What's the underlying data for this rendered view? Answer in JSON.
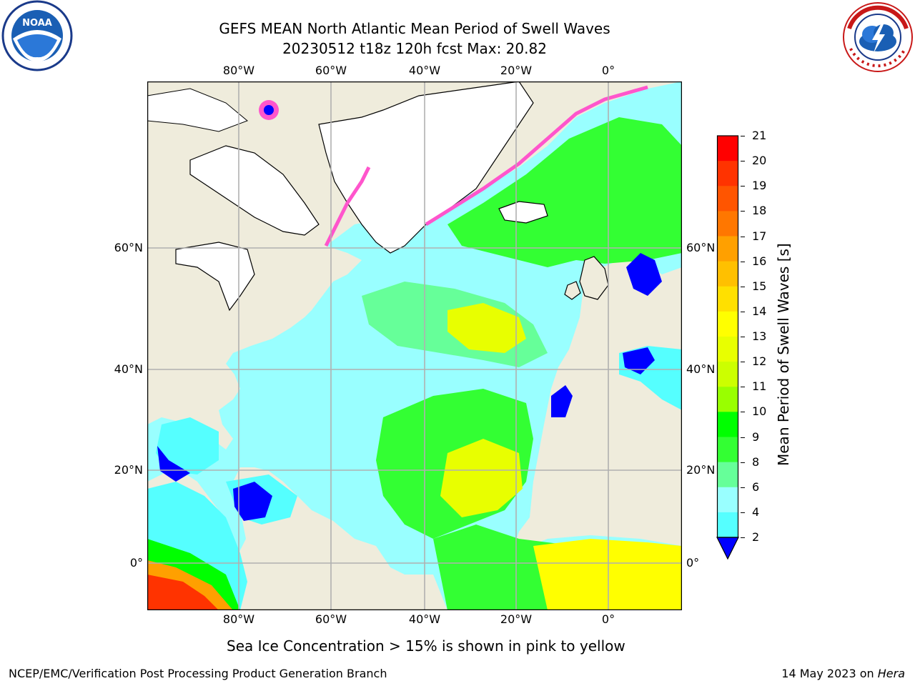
{
  "header": {
    "title_line1": "GEFS MEAN North Atlantic Mean Period of Swell Waves",
    "title_line2": "20230512 t18z 120h fcst   Max: 20.82"
  },
  "logos": {
    "left": {
      "icon": "noaa-logo",
      "text": "NOAA",
      "ring_text": "NATIONAL OCEANIC AND ATMOSPHERIC ADMINISTRATION · U.S. DEPARTMENT OF COMMERCE"
    },
    "right": {
      "icon": "nws-logo",
      "ring_text": "NATIONAL WEATHER SERVICE"
    }
  },
  "map": {
    "lon_ticks_top": [
      "80°W",
      "60°W",
      "40°W",
      "20°W",
      "0°"
    ],
    "lon_ticks_bottom": [
      "80°W",
      "60°W",
      "40°W",
      "20°W",
      "0°"
    ],
    "lat_ticks_left": [
      "60°N",
      "40°N",
      "20°N",
      "0°"
    ],
    "lat_ticks_right": [
      "60°N",
      "40°N",
      "20°N",
      "0°"
    ],
    "colors": {
      "land": "#efecdc",
      "grid": "#b0b0b0"
    }
  },
  "colorbar": {
    "title": "Mean Period of Swell Waves [s]",
    "ticks": [
      "21",
      "20",
      "19",
      "18",
      "17",
      "16",
      "15",
      "14",
      "13",
      "12",
      "11",
      "10",
      "9",
      "8",
      "6",
      "4",
      "2"
    ],
    "colors": [
      "#ff0000",
      "#ff3300",
      "#ff5500",
      "#ff7700",
      "#ffa000",
      "#ffc000",
      "#ffe000",
      "#ffff00",
      "#e8ff00",
      "#ccff00",
      "#99ff00",
      "#00ff00",
      "#33ff33",
      "#66ff99",
      "#99ffff",
      "#55ffff",
      "#00ffff",
      "#00ccff",
      "#0099ff",
      "#0000ff"
    ]
  },
  "note": "Sea Ice Concentration > 15% is shown in pink to yellow",
  "footer": {
    "left": "NCEP/EMC/Verification Post Processing Product Generation Branch",
    "right_date": "14 May 2023 on ",
    "right_machine": "Hera"
  }
}
